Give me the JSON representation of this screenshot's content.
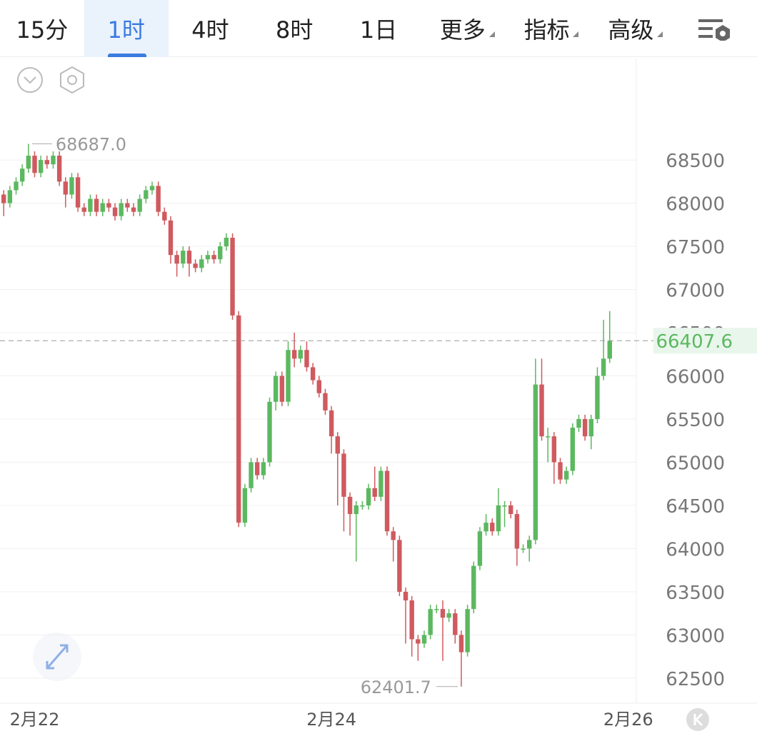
{
  "toolbar": {
    "tabs": [
      "15分",
      "1时",
      "4时",
      "8时",
      "1日"
    ],
    "menus": [
      "更多",
      "指标",
      "高级"
    ]
  },
  "chart_data": {
    "type": "candlestick",
    "up_color": "#5cb860",
    "down_color": "#cf5a5f",
    "ylim": [
      62210,
      69675
    ],
    "yticks": [
      62500,
      63000,
      63500,
      64000,
      64500,
      65000,
      65500,
      66000,
      66500,
      67000,
      67500,
      68000,
      68500
    ],
    "xlim": [
      -0.6,
      102.3
    ],
    "xticks": [
      {
        "value": 5,
        "label": "2月22"
      },
      {
        "value": 53,
        "label": "2月24"
      },
      {
        "value": 101,
        "label": "2月26"
      }
    ],
    "grid": true,
    "annotations": [
      {
        "index": 4,
        "value": 68687,
        "label": "68687.0"
      },
      {
        "index": 74,
        "value": 62401.7,
        "label": "62401.7"
      }
    ],
    "open": [
      68100,
      68000,
      68150,
      68250,
      68400,
      68550,
      68350,
      68500,
      68450,
      68550,
      68250,
      68100,
      68300,
      67950,
      67900,
      68050,
      67900,
      68000,
      67950,
      67850,
      68000,
      67950,
      67900,
      68050,
      68150,
      68200,
      67900,
      67800,
      67400,
      67300,
      67450,
      67300,
      67250,
      67350,
      67400,
      67350,
      67500,
      67600,
      66700,
      64300,
      64700,
      65000,
      64850,
      65000,
      65700,
      66000,
      65700,
      66300,
      66200,
      66300,
      66100,
      65950,
      65800,
      65600,
      65300,
      65100,
      64600,
      64400,
      64500,
      64500,
      64700,
      64600,
      64900,
      64200,
      64100,
      63500,
      63400,
      62950,
      62900,
      63000,
      63300,
      63300,
      63200,
      63250,
      63000,
      62800,
      63300,
      63800,
      64200,
      64300,
      64200,
      64500,
      64500,
      64400,
      64000,
      64000,
      64100,
      65900,
      65300,
      65300,
      65000,
      64800,
      64900,
      65400,
      65500,
      65300,
      65500,
      66000,
      66200
    ],
    "high": [
      68150,
      68200,
      68300,
      68450,
      68687,
      68600,
      68550,
      68550,
      68600,
      68600,
      68300,
      68350,
      68350,
      68000,
      68100,
      68100,
      68050,
      68050,
      68000,
      68050,
      68050,
      68000,
      68100,
      68200,
      68250,
      68250,
      67950,
      67850,
      67450,
      67500,
      67500,
      67350,
      67400,
      67450,
      67450,
      67550,
      67650,
      67650,
      66750,
      64750,
      65050,
      65050,
      65050,
      65750,
      66050,
      66050,
      66400,
      66500,
      66350,
      66400,
      66150,
      66000,
      65850,
      65650,
      65350,
      65150,
      64650,
      64550,
      64550,
      64750,
      64950,
      64950,
      64950,
      64250,
      64150,
      63550,
      63450,
      63000,
      63050,
      63350,
      63350,
      63400,
      63300,
      63300,
      63050,
      63350,
      63850,
      64250,
      64400,
      64350,
      64700,
      64550,
      64550,
      64450,
      64050,
      64150,
      66200,
      66200,
      65400,
      65350,
      65050,
      64950,
      65450,
      65550,
      65550,
      65550,
      66100,
      66650,
      66750
    ],
    "low": [
      67850,
      67950,
      68100,
      68200,
      68350,
      68300,
      68300,
      68400,
      68400,
      68200,
      67950,
      68050,
      67900,
      67850,
      67850,
      67850,
      67850,
      67900,
      67800,
      67800,
      67900,
      67850,
      67850,
      68000,
      68100,
      67850,
      67750,
      67300,
      67150,
      67250,
      67150,
      67200,
      67200,
      67300,
      67300,
      67300,
      67450,
      66650,
      64250,
      64250,
      64650,
      64800,
      64800,
      64950,
      65600,
      65650,
      65650,
      66100,
      66150,
      66050,
      65900,
      65750,
      65550,
      65100,
      64500,
      64200,
      64150,
      63850,
      64450,
      64450,
      64550,
      64550,
      64150,
      63850,
      63450,
      62900,
      62750,
      62700,
      62850,
      62950,
      63250,
      62700,
      63150,
      62900,
      62401.7,
      62750,
      63250,
      63750,
      64150,
      64150,
      64150,
      64250,
      64350,
      63800,
      63950,
      63850,
      64050,
      65250,
      65000,
      64750,
      64750,
      64750,
      64850,
      65350,
      65250,
      65150,
      65450,
      65950,
      66150
    ],
    "close": [
      68000,
      68150,
      68250,
      68400,
      68550,
      68350,
      68500,
      68450,
      68550,
      68250,
      68100,
      68300,
      67950,
      67900,
      68050,
      67900,
      68000,
      67950,
      67850,
      68000,
      67950,
      67900,
      68050,
      68150,
      68200,
      67900,
      67800,
      67400,
      67300,
      67450,
      67300,
      67250,
      67350,
      67400,
      67350,
      67500,
      67600,
      66700,
      64300,
      64700,
      65000,
      64850,
      65000,
      65700,
      66000,
      65700,
      66300,
      66200,
      66300,
      66100,
      65950,
      65800,
      65600,
      65300,
      65100,
      64600,
      64400,
      64500,
      64500,
      64700,
      64600,
      64900,
      64200,
      64100,
      63500,
      63400,
      62950,
      62900,
      63000,
      63300,
      63300,
      63200,
      63250,
      63000,
      62800,
      63300,
      63800,
      64200,
      64300,
      64200,
      64500,
      64500,
      64400,
      64000,
      64000,
      64100,
      65900,
      65300,
      65300,
      65000,
      64800,
      64900,
      65400,
      65500,
      65300,
      65500,
      66000,
      66200,
      66407.6
    ]
  }
}
